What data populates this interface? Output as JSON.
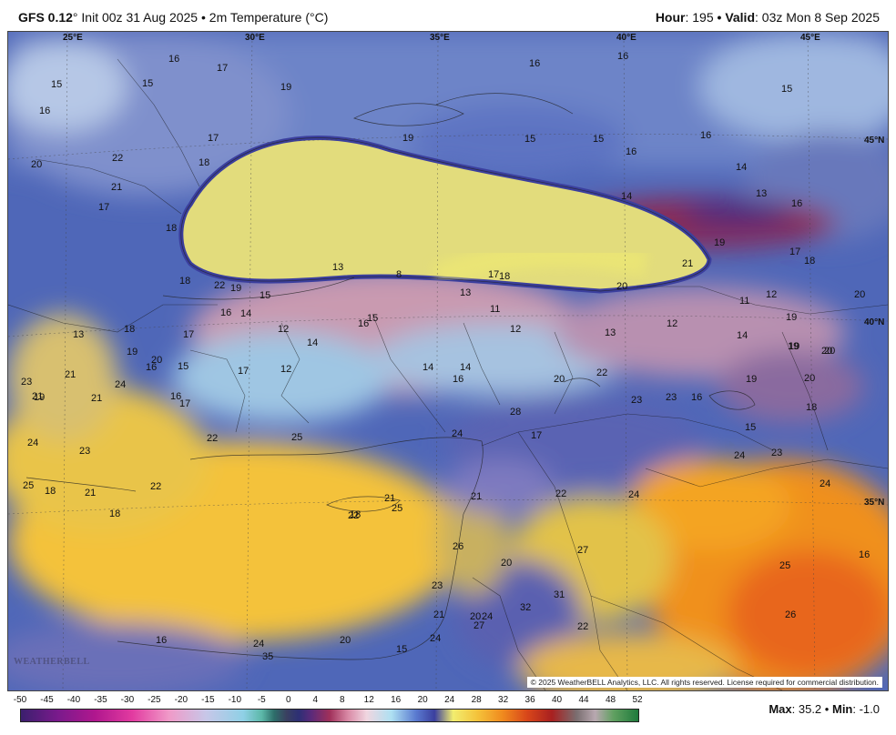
{
  "header": {
    "model": "GFS 0.12",
    "degree": "°",
    "init_text": "Init 00z 31 Aug 2025",
    "bullet": "•",
    "variable": "2m Temperature (°C)",
    "hour_label": "Hour",
    "hour_value": ": 195",
    "valid_label": "Valid",
    "valid_value": ": 03z Mon 8 Sep 2025"
  },
  "map": {
    "coords": [
      "25°E",
      "30°E",
      "35°E",
      "40°E",
      "45°E",
      "45°N",
      "40°N",
      "35°N"
    ],
    "values": [
      "16",
      "17",
      "15",
      "15",
      "16",
      "19",
      "16",
      "16",
      "15",
      "20",
      "22",
      "18",
      "21",
      "17",
      "17",
      "18",
      "19",
      "15",
      "15",
      "16",
      "16",
      "14",
      "13",
      "14",
      "16",
      "19",
      "17",
      "18",
      "21",
      "17",
      "18",
      "20",
      "13",
      "8",
      "18",
      "19",
      "15",
      "22",
      "16",
      "14",
      "12",
      "16",
      "15",
      "13",
      "11",
      "12",
      "13",
      "20",
      "11",
      "12",
      "19",
      "20",
      "19",
      "17",
      "12",
      "14",
      "12",
      "14",
      "14",
      "16",
      "14",
      "17",
      "16",
      "15",
      "20",
      "20",
      "22",
      "23",
      "23",
      "16",
      "19",
      "16",
      "17",
      "20",
      "19",
      "18",
      "15",
      "17",
      "18",
      "13",
      "21",
      "19",
      "21",
      "24",
      "25",
      "18",
      "21",
      "23",
      "20",
      "19",
      "18",
      "22",
      "22",
      "24",
      "21",
      "23",
      "25",
      "24",
      "28",
      "27",
      "22",
      "24",
      "24",
      "23",
      "24",
      "21",
      "25",
      "18",
      "22",
      "21",
      "26",
      "20",
      "32",
      "31",
      "23",
      "21",
      "24",
      "25",
      "26",
      "22",
      "16",
      "16",
      "24",
      "20",
      "24",
      "20",
      "27",
      "15",
      "35"
    ],
    "logo": "WEATHERBELL",
    "copyright": "© 2025 WeatherBELL Analytics, LLC. All rights reserved. License required for commercial distribution."
  },
  "colorscale": {
    "ticks": [
      "-50",
      "-45",
      "-40",
      "-35",
      "-30",
      "-25",
      "-20",
      "-15",
      "-10",
      "-5",
      "0",
      "4",
      "8",
      "12",
      "16",
      "20",
      "24",
      "28",
      "32",
      "36",
      "40",
      "44",
      "48",
      "52"
    ]
  },
  "stats": {
    "max_label": "Max",
    "max_value": ": 35.2",
    "sep": "•",
    "min_label": "Min",
    "min_value": ": -1.0"
  }
}
